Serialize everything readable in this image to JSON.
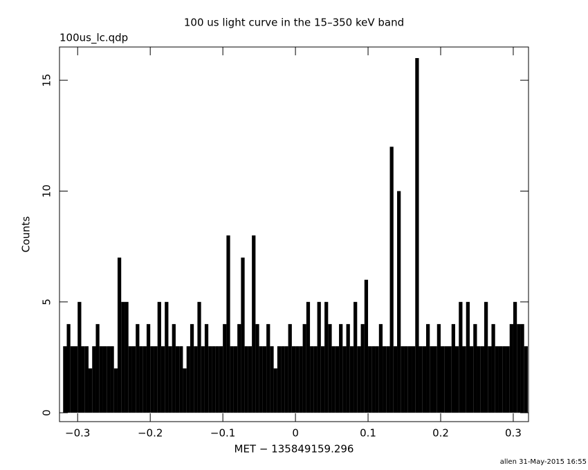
{
  "chart_data": {
    "type": "histogram",
    "title": "100 us light curve in the 15–350 keV band",
    "subtitle": "100us_lc.qdp",
    "xlabel": "MET − 135849159.296",
    "ylabel": "Counts",
    "footer": "allen 31-May-2015 16:55",
    "color": "#000000",
    "bins": [
      -0.32,
      -0.315,
      -0.31,
      -0.305,
      -0.3,
      -0.295,
      -0.29,
      -0.285,
      -0.28,
      -0.275,
      -0.27,
      -0.265,
      -0.26,
      -0.255,
      -0.25,
      -0.245,
      -0.24,
      -0.235,
      -0.23,
      -0.225,
      -0.22,
      -0.215,
      -0.21,
      -0.205,
      -0.2,
      -0.195,
      -0.19,
      -0.185,
      -0.18,
      -0.175,
      -0.17,
      -0.165,
      -0.16,
      -0.155,
      -0.15,
      -0.145,
      -0.14,
      -0.135,
      -0.13,
      -0.125,
      -0.12,
      -0.115,
      -0.11,
      -0.105,
      -0.1,
      -0.095,
      -0.09,
      -0.085,
      -0.08,
      -0.075,
      -0.07,
      -0.065,
      -0.06,
      -0.055,
      -0.05,
      -0.045,
      -0.04,
      -0.035,
      -0.03,
      -0.025,
      -0.02,
      -0.015,
      -0.01,
      -0.005,
      0,
      0.005,
      0.01,
      0.015,
      0.02,
      0.025,
      0.03,
      0.035,
      0.04,
      0.045,
      0.05,
      0.055,
      0.06,
      0.065,
      0.07,
      0.075,
      0.08,
      0.085,
      0.09,
      0.095,
      0.1,
      0.105,
      0.11,
      0.115,
      0.12,
      0.125,
      0.13,
      0.135,
      0.14,
      0.145,
      0.15,
      0.155,
      0.16,
      0.165,
      0.17,
      0.175,
      0.18,
      0.185,
      0.19,
      0.195,
      0.2,
      0.205,
      0.21,
      0.215,
      0.22,
      0.225,
      0.23,
      0.235,
      0.24,
      0.245,
      0.25,
      0.255,
      0.26,
      0.265,
      0.27,
      0.275,
      0.28,
      0.285,
      0.29,
      0.295,
      0.3,
      0.305,
      0.31,
      0.315,
      0.32
    ],
    "values": [
      3,
      4,
      3,
      3,
      5,
      3,
      3,
      2,
      3,
      4,
      3,
      3,
      3,
      3,
      2,
      7,
      5,
      5,
      3,
      3,
      4,
      3,
      3,
      4,
      3,
      3,
      5,
      3,
      5,
      3,
      4,
      3,
      3,
      2,
      3,
      4,
      3,
      5,
      3,
      4,
      3,
      3,
      3,
      3,
      4,
      8,
      3,
      3,
      4,
      7,
      3,
      3,
      8,
      4,
      3,
      3,
      4,
      3,
      2,
      3,
      3,
      3,
      4,
      3,
      3,
      3,
      4,
      5,
      3,
      3,
      5,
      3,
      5,
      4,
      3,
      3,
      4,
      3,
      4,
      3,
      5,
      3,
      4,
      6,
      3,
      3,
      3,
      4,
      3,
      3,
      12,
      3,
      10,
      3,
      3,
      3,
      3,
      16,
      3,
      3,
      4,
      3,
      3,
      4,
      3,
      3,
      3,
      4,
      3,
      5,
      3,
      5,
      3,
      4,
      3,
      3,
      5,
      3,
      4,
      3,
      3,
      3,
      3,
      4,
      5,
      4,
      4,
      3
    ],
    "xlim": [
      -0.325,
      0.321
    ],
    "ylim": [
      -0.4,
      16.5
    ],
    "xticks": [
      {
        "value": -0.3,
        "label": "−0.3"
      },
      {
        "value": -0.2,
        "label": "−0.2"
      },
      {
        "value": -0.1,
        "label": "−0.1"
      },
      0,
      0.1,
      0.2,
      0.3
    ],
    "yticks": [
      0,
      5,
      10,
      15
    ]
  }
}
